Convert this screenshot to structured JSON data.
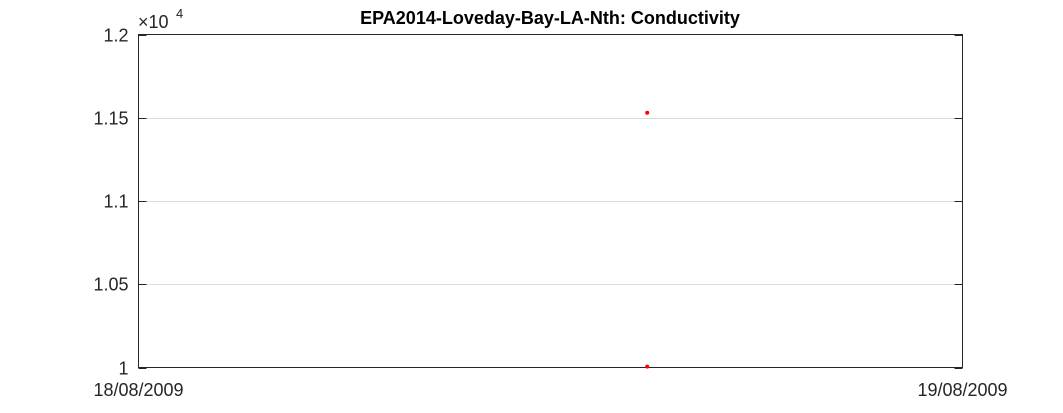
{
  "chart_data": {
    "type": "scatter",
    "title": "EPA2014-Loveday-Bay-LA-Nth: Conductivity",
    "xlabel": "",
    "ylabel": "",
    "x_tick_labels": [
      "18/08/2009",
      "19/08/2009"
    ],
    "xlim": [
      "18/08/2009",
      "19/08/2009"
    ],
    "y_tick_labels": [
      "1",
      "1.05",
      "1.1",
      "1.15",
      "1.2"
    ],
    "y_tick_values": [
      10000,
      10500,
      11000,
      11500,
      12000
    ],
    "y_exponent_label": "×10",
    "y_exponent_power": "4",
    "ylim": [
      10000,
      12000
    ],
    "grid": "horizontal",
    "series": [
      {
        "color": "#ff0000",
        "points": [
          {
            "x": "18/08/2009 14:49",
            "y": 11530
          },
          {
            "x": "18/08/2009 14:49",
            "y": 10005
          }
        ]
      }
    ]
  }
}
